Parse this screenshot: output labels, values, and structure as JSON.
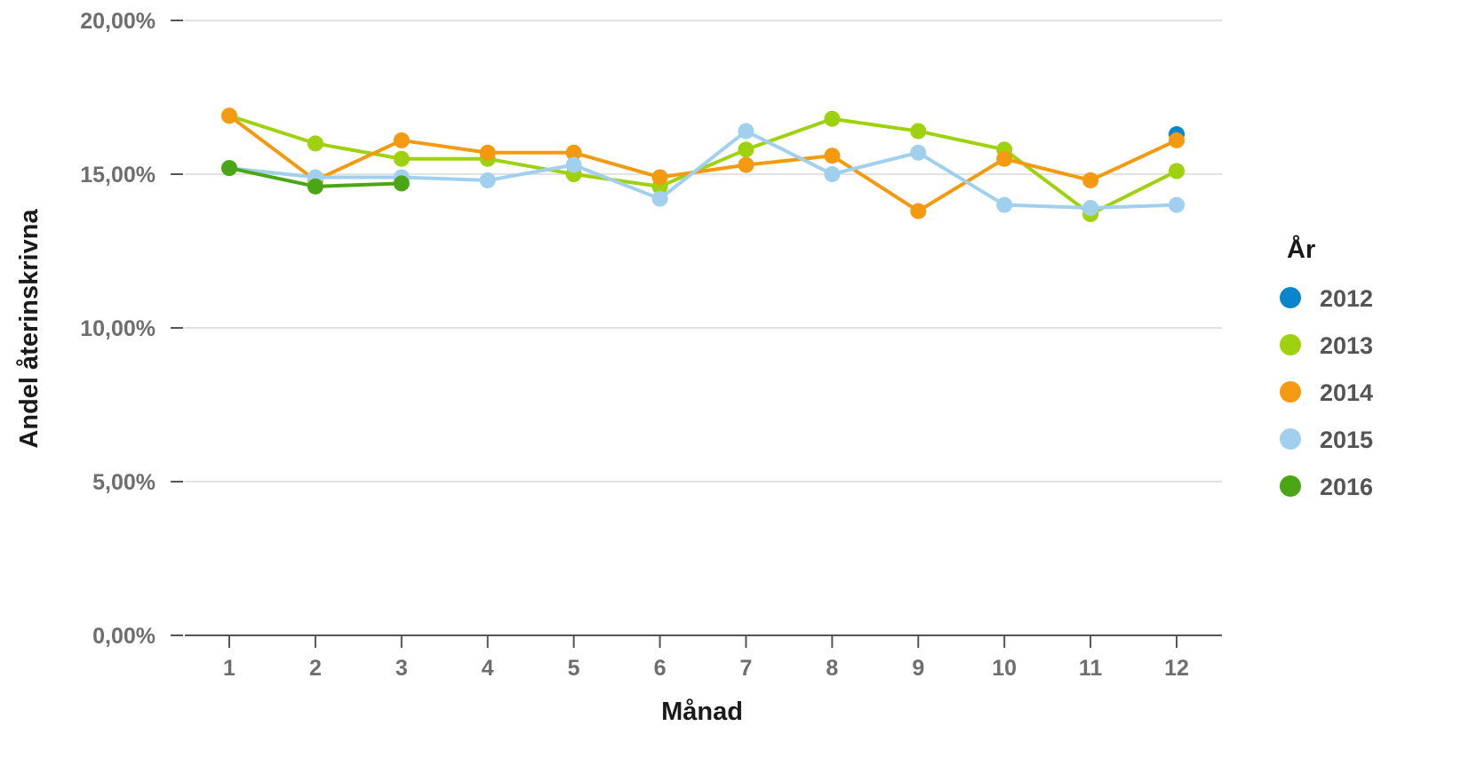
{
  "chart_data": {
    "type": "line",
    "xlabel": "Månad",
    "ylabel": "Andel återinskrivna",
    "x": [
      1,
      2,
      3,
      4,
      5,
      6,
      7,
      8,
      9,
      10,
      11,
      12
    ],
    "ylim": [
      0,
      20
    ],
    "y_ticks": [
      0,
      5,
      10,
      15,
      20
    ],
    "y_tick_labels": [
      "0,00%",
      "5,00%",
      "10,00%",
      "15,00%",
      "20,00%"
    ],
    "x_tick_labels": [
      "1",
      "2",
      "3",
      "4",
      "5",
      "6",
      "7",
      "8",
      "9",
      "10",
      "11",
      "12"
    ],
    "grid": true,
    "legend": {
      "title": "År",
      "position": "right"
    },
    "series": [
      {
        "name": "2012",
        "color": "#0a85cc",
        "values": [
          null,
          null,
          null,
          null,
          null,
          null,
          null,
          null,
          null,
          null,
          null,
          16.3
        ]
      },
      {
        "name": "2013",
        "color": "#9ed20e",
        "values": [
          16.9,
          16.0,
          15.5,
          15.5,
          15.0,
          14.6,
          15.8,
          16.8,
          16.4,
          15.8,
          13.7,
          15.1
        ]
      },
      {
        "name": "2014",
        "color": "#f39a10",
        "values": [
          16.9,
          14.8,
          16.1,
          15.7,
          15.7,
          14.9,
          15.3,
          15.6,
          13.8,
          15.5,
          14.8,
          16.1
        ]
      },
      {
        "name": "2015",
        "color": "#a0d0ee",
        "values": [
          15.2,
          14.9,
          14.9,
          14.8,
          15.3,
          14.2,
          16.4,
          15.0,
          15.7,
          14.0,
          13.9,
          14.0
        ]
      },
      {
        "name": "2016",
        "color": "#4aa614",
        "values": [
          15.2,
          14.6,
          14.7,
          null,
          null,
          null,
          null,
          null,
          null,
          null,
          null,
          null
        ]
      }
    ]
  }
}
